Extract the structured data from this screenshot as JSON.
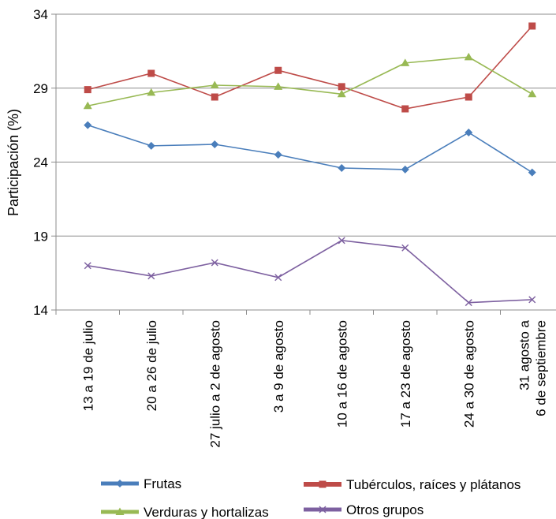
{
  "chart_data": {
    "type": "line",
    "title": "",
    "xlabel": "",
    "ylabel": "Participación (%)",
    "ylim": [
      14,
      34
    ],
    "yticks": [
      14,
      19,
      24,
      29,
      34
    ],
    "grid": "horizontal",
    "legend_position": "bottom",
    "categories": [
      [
        "13 a 19 de julio"
      ],
      [
        "20 a 26 de julio"
      ],
      [
        "27 julio a 2 de agosto"
      ],
      [
        "3 a 9 de agosto"
      ],
      [
        "10 a 16 de agosto"
      ],
      [
        "17 a 23 de agosto"
      ],
      [
        "24 a 30 de agosto"
      ],
      [
        "31 agosto a",
        "6 de septiembre"
      ]
    ],
    "series": [
      {
        "name": "Frutas",
        "color": "#4a7ebb",
        "marker": "diamond",
        "values": [
          26.5,
          25.1,
          25.2,
          24.5,
          23.6,
          23.5,
          26.0,
          23.3
        ]
      },
      {
        "name": "Tubérculos, raíces y plátanos",
        "color": "#be4b48",
        "marker": "square",
        "values": [
          28.9,
          30.0,
          28.4,
          30.2,
          29.1,
          27.6,
          28.4,
          33.2
        ]
      },
      {
        "name": "Verduras y hortalizas",
        "color": "#98b954",
        "marker": "triangle",
        "values": [
          27.8,
          28.7,
          29.2,
          29.1,
          28.6,
          30.7,
          31.1,
          28.6
        ]
      },
      {
        "name": "Otros grupos",
        "color": "#7d60a0",
        "marker": "x",
        "values": [
          17.0,
          16.3,
          17.2,
          16.2,
          18.7,
          18.2,
          14.5,
          14.7
        ]
      }
    ]
  }
}
